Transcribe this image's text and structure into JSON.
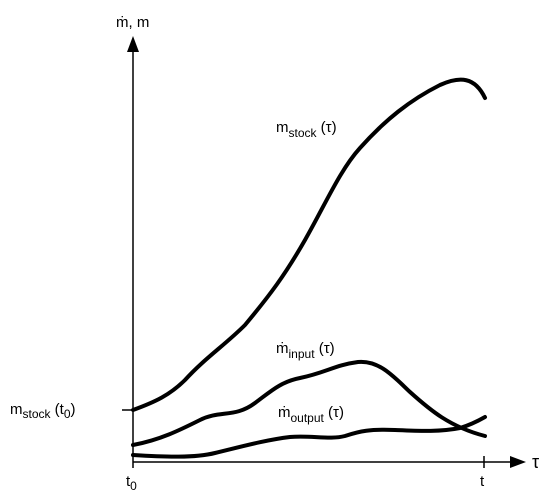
{
  "axes": {
    "y_label": "ṁ, m",
    "x_label": "τ",
    "x_start": {
      "main": "t",
      "sub": "0"
    },
    "x_end": "t",
    "y_marker": {
      "main": "m",
      "sub": "stock",
      "suffix": " (t",
      "sub2": "0",
      "close": ")"
    }
  },
  "curves": [
    {
      "main": "m",
      "sub": "stock",
      "suffix": " (τ)"
    },
    {
      "main": "ṁ",
      "sub": "input",
      "suffix": " (τ)"
    },
    {
      "main": "ṁ",
      "sub": "output",
      "suffix": " (τ)"
    }
  ]
}
